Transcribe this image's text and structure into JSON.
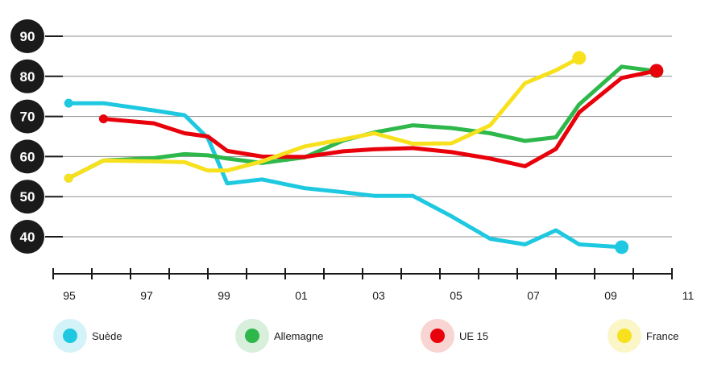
{
  "chart_data": {
    "type": "line",
    "x_labels": [
      "95",
      "97",
      "99",
      "01",
      "03",
      "05",
      "07",
      "09",
      "11"
    ],
    "x_range": [
      1995,
      2011
    ],
    "ylim": [
      33,
      95
    ],
    "y_ticks": [
      90,
      80,
      70,
      60,
      50,
      40
    ],
    "grid": true,
    "legend_position": "bottom",
    "series": [
      {
        "name": "Suède",
        "color": "#1ec8e0",
        "halo": "#d4f3f8",
        "points": [
          [
            1995.4,
            73.3
          ],
          [
            1996.3,
            73.3
          ],
          [
            1997.6,
            71.5
          ],
          [
            1998.4,
            70.3
          ],
          [
            1999.0,
            64.6
          ],
          [
            1999.5,
            53.3
          ],
          [
            2000.4,
            54.3
          ],
          [
            2001.5,
            52.1
          ],
          [
            2002.5,
            51.1
          ],
          [
            2003.3,
            50.2
          ],
          [
            2004.3,
            50.2
          ],
          [
            2005.3,
            45.1
          ],
          [
            2006.3,
            39.5
          ],
          [
            2007.2,
            38.1
          ],
          [
            2008.0,
            41.6
          ],
          [
            2008.6,
            38.1
          ],
          [
            2009.7,
            37.4
          ]
        ]
      },
      {
        "name": "Allemagne",
        "color": "#2eb84b",
        "halo": "#d7efdb",
        "points": [
          [
            1995.4,
            54.6
          ],
          [
            1996.3,
            59.0
          ],
          [
            1997.6,
            59.6
          ],
          [
            1998.4,
            60.6
          ],
          [
            1999.0,
            60.3
          ],
          [
            1999.5,
            59.5
          ],
          [
            2000.4,
            58.4
          ],
          [
            2001.5,
            59.8
          ],
          [
            2002.5,
            64.0
          ],
          [
            2003.3,
            66.0
          ],
          [
            2004.3,
            67.8
          ],
          [
            2005.3,
            67.1
          ],
          [
            2006.3,
            65.8
          ],
          [
            2007.2,
            63.9
          ],
          [
            2008.0,
            64.8
          ],
          [
            2008.6,
            73.0
          ],
          [
            2009.7,
            82.4
          ],
          [
            2010.6,
            81.3
          ]
        ]
      },
      {
        "name": "UE 15",
        "color": "#e8000b",
        "halo": "#f8d4d2",
        "points": [
          [
            1996.3,
            69.4
          ],
          [
            1997.6,
            68.3
          ],
          [
            1998.4,
            65.8
          ],
          [
            1999.0,
            65.0
          ],
          [
            1999.5,
            61.4
          ],
          [
            2000.4,
            60.0
          ],
          [
            2001.5,
            59.9
          ],
          [
            2002.5,
            61.3
          ],
          [
            2003.3,
            61.8
          ],
          [
            2004.3,
            62.1
          ],
          [
            2005.3,
            61.1
          ],
          [
            2006.3,
            59.5
          ],
          [
            2007.2,
            57.6
          ],
          [
            2008.0,
            61.9
          ],
          [
            2008.6,
            71.0
          ],
          [
            2009.7,
            79.6
          ],
          [
            2010.6,
            81.4
          ]
        ]
      },
      {
        "name": "France",
        "color": "#f7e11f",
        "halo": "#fbf6c8",
        "points": [
          [
            1995.4,
            54.6
          ],
          [
            1996.3,
            59.0
          ],
          [
            1997.6,
            58.8
          ],
          [
            1998.4,
            58.6
          ],
          [
            1999.0,
            56.5
          ],
          [
            1999.5,
            56.5
          ],
          [
            2000.4,
            58.8
          ],
          [
            2001.5,
            62.5
          ],
          [
            2002.5,
            64.3
          ],
          [
            2003.3,
            65.8
          ],
          [
            2004.3,
            63.2
          ],
          [
            2005.3,
            63.3
          ],
          [
            2006.3,
            67.8
          ],
          [
            2007.2,
            78.3
          ],
          [
            2008.0,
            81.5
          ],
          [
            2008.6,
            84.6
          ]
        ]
      }
    ]
  }
}
